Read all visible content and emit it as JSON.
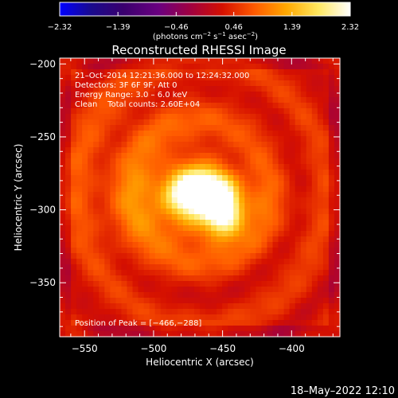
{
  "chart_data": {
    "type": "heatmap",
    "title": "Reconstructed RHESSI Image",
    "xlabel": "Heliocentric X (arcsec)",
    "ylabel": "Heliocentric Y (arcsec)",
    "xlim": [
      -568,
      -365
    ],
    "ylim": [
      -387,
      -196
    ],
    "x_ticks": [
      -550,
      -500,
      -450,
      -400
    ],
    "x_tick_labels": [
      "−550",
      "−500",
      "−450",
      "−400"
    ],
    "y_ticks": [
      -200,
      -250,
      -300,
      -350
    ],
    "y_tick_labels": [
      "−200",
      "−250",
      "−300",
      "−350"
    ],
    "colorbar": {
      "min": -2.32,
      "max": 2.32,
      "ticks": [
        -2.32,
        -1.39,
        -0.46,
        0.46,
        1.39,
        2.32
      ],
      "tick_labels": [
        "−2.32",
        "−1.39",
        "−0.46",
        "0.46",
        "1.39",
        "2.32"
      ],
      "units_text": "(photons cm",
      "units_sup1": "−2",
      "units_mid": " s",
      "units_sup2": "−1",
      "units_end": " asec",
      "units_sup3": "−2",
      "units_close": ")",
      "colormap": [
        "#0000ff",
        "#1a0a8c",
        "#3a006e",
        "#6a0080",
        "#a00040",
        "#d51000",
        "#ff5a00",
        "#ffa800",
        "#ffe860",
        "#ffffff"
      ]
    },
    "annotations": [
      "21–Oct–2014 12:21:36.000 to 12:24:32.000",
      "Detectors: 3F 6F 9F, Att 0",
      "Energy Range: 3.0 – 6.0 keV",
      "Clean    Total counts: 2.60E+04"
    ],
    "peak_label": "Position of Peak = [−466,−288]",
    "peak": {
      "x": -466,
      "y": -288,
      "value": 2.32
    },
    "sources": [
      {
        "x": -466,
        "y": -288,
        "sx": 14,
        "sy": 9,
        "amp": 2.4
      },
      {
        "x": -449,
        "y": -303,
        "sx": 9,
        "sy": 11,
        "amp": 1.7
      },
      {
        "x": -470,
        "y": -300,
        "sx": 40,
        "sy": 22,
        "amp": 0.7
      },
      {
        "x": -500,
        "y": -268,
        "sx": 50,
        "sy": 40,
        "amp": 0.35
      }
    ],
    "background_level": 0.35
  },
  "footer": {
    "timestamp": "18–May–2022 12:10"
  }
}
